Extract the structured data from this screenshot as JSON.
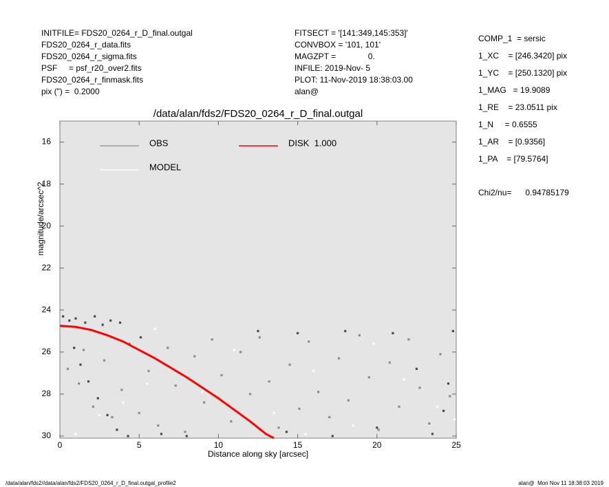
{
  "chart_data": {
    "type": "scatter",
    "title": "/data/alan/fds2/FDS20_0264_r_D_final.outgal",
    "x_label": "Distance along sky [arcsec]",
    "y_label": "magnitude/arcsec^2",
    "xlim": [
      0,
      25
    ],
    "xticks": [
      0,
      5,
      10,
      15,
      20,
      25
    ],
    "ylim": [
      30.1,
      15
    ],
    "yticks": [
      16,
      18,
      20,
      22,
      24,
      26,
      28,
      30
    ],
    "grid": false,
    "legend": "upper left",
    "header": {
      "left": [
        "INITFILE= FDS20_0264_r_D_final.outgal",
        "FDS20_0264_r_data.fits",
        "FDS20_0264_r_sigma.fits",
        "PSF     = psf_r20_over2.fits",
        "FDS20_0264_r_finmask.fits",
        "pix (\") =  0.2000"
      ],
      "middle": [
        "FITSECT = '[141:349,145:353]'",
        "CONVBOX = '101, 101'",
        "MAGZPT =              0.",
        "INFILE: 2019-Nov- 5",
        "PLOT: 11-Nov-2019 18:38:03.00",
        "alan@"
      ],
      "right": [
        "COMP_1  = sersic",
        "1_XC    = [246.3420] pix",
        "1_YC    = [250.1320] pix",
        "1_MAG   = 19.9089",
        "1_RE    = 23.0511 pix",
        "1_N     = 0.6555",
        "1_AR    = [0.9356]",
        "1_PA    = [79.5764]"
      ],
      "chi2": "Chi2/nu=      0.94785179"
    },
    "footer": {
      "left": "/data/alan/fds2//data/alan/fds2/FDS20_0264_r_D_final.outgal_profile2",
      "right": "alan@  Mon Nov 11 18:38:03 2019"
    },
    "series": [
      {
        "name": "OBS",
        "color": "#8c8c8c",
        "mark": "point",
        "x": [
          0.5,
          1.2,
          1.5,
          2.1,
          2.8,
          3.3,
          3.9,
          4.4,
          5.0,
          5.6,
          6.2,
          6.8,
          7.3,
          7.9,
          8.5,
          9.1,
          9.6,
          10.2,
          10.8,
          11.4,
          12.0,
          12.6,
          13.2,
          13.8,
          14.5,
          15.1,
          15.7,
          16.3,
          17.0,
          17.6,
          18.2,
          18.9,
          19.5,
          20.1,
          20.8,
          21.4,
          22.0,
          22.7,
          23.3,
          24.0,
          24.6
        ],
        "values": [
          26.8,
          27.5,
          25.9,
          28.6,
          26.4,
          29.1,
          27.8,
          25.6,
          28.9,
          26.9,
          29.5,
          25.8,
          27.6,
          29.8,
          26.2,
          28.4,
          25.4,
          27.1,
          29.3,
          26.0,
          28.0,
          25.3,
          27.4,
          29.6,
          26.6,
          28.7,
          25.5,
          27.9,
          29.1,
          26.3,
          28.3,
          25.2,
          27.2,
          29.7,
          26.5,
          28.6,
          25.4,
          27.7,
          29.4,
          26.1,
          28.1
        ]
      },
      {
        "color": "#4a4a4a",
        "mark": "point",
        "x": [
          0.2,
          0.6,
          1.0,
          1.6,
          2.2,
          2.7,
          3.2,
          3.8,
          0.9,
          1.3,
          1.8,
          2.4,
          3.0,
          3.6,
          4.3,
          5.1,
          6.4,
          8.0,
          12.5,
          15.0,
          18.0,
          21.0,
          24.8,
          22.5,
          24.5,
          24.2,
          23.5,
          20.0,
          17.2,
          14.3
        ],
        "values": [
          24.3,
          24.5,
          24.4,
          24.6,
          24.3,
          24.7,
          24.5,
          24.6,
          25.8,
          26.6,
          27.4,
          28.2,
          29.0,
          29.7,
          30.0,
          25.3,
          29.9,
          30.0,
          25.0,
          25.1,
          25.0,
          25.1,
          25.0,
          26.8,
          27.5,
          28.8,
          29.9,
          29.6,
          30.0,
          29.8
        ]
      },
      {
        "name": "MODEL",
        "color": "#ffffff",
        "mark": "point",
        "x": [
          1.0,
          2.5,
          4.0,
          5.5,
          7.0,
          9.0,
          11.0,
          13.5,
          16.0,
          18.5,
          19.8,
          21.7,
          23.8,
          24.9,
          15.5,
          6.0
        ],
        "values": [
          29.9,
          29.0,
          28.4,
          27.5,
          26.8,
          27.9,
          25.9,
          28.9,
          26.9,
          29.5,
          25.6,
          27.3,
          28.6,
          29.2,
          29.9,
          24.9
        ]
      },
      {
        "name": "DISK  1.000",
        "color": "#ff0000",
        "mark": "line",
        "x": [
          0,
          1,
          2,
          3,
          4,
          5,
          6,
          7,
          8,
          9,
          10,
          11,
          12,
          13,
          13.5
        ],
        "values": [
          24.75,
          24.8,
          24.95,
          25.2,
          25.5,
          25.9,
          26.3,
          26.75,
          27.2,
          27.7,
          28.2,
          28.75,
          29.3,
          29.9,
          30.1
        ]
      }
    ]
  }
}
